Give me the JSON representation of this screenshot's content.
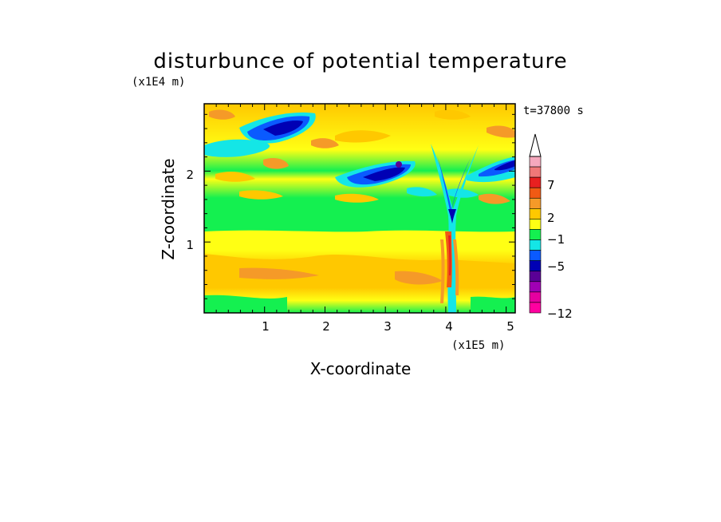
{
  "chart_data": {
    "type": "heatmap",
    "title": "disturbunce of potential temperature",
    "xlabel": "X-coordinate",
    "ylabel": "Z-coordinate",
    "x_unit": "(x1E5 m)",
    "y_unit": "(x1E4 m)",
    "time_label": "t=37800 s",
    "xlim": [
      0,
      5.15
    ],
    "ylim": [
      0,
      2.95
    ],
    "x_ticks": [
      "1",
      "2",
      "3",
      "4",
      "5"
    ],
    "y_ticks": [
      "1",
      "2"
    ],
    "colorbar": {
      "levels": [
        "#f5a8bd",
        "#f07878",
        "#e82020",
        "#f05a14",
        "#f59a28",
        "#ffc800",
        "#ffff14",
        "#14f050",
        "#14e6e6",
        "#0a5aff",
        "#0000b4",
        "#5a0096",
        "#a000b4",
        "#e600a0",
        "#ff00a0"
      ],
      "tick_labels": [
        "7",
        "2",
        "−1",
        "−5",
        "−12"
      ],
      "extend": "max"
    },
    "features": {
      "vertical_disturbance_x": 4.0,
      "negative_patches_upper": [
        {
          "x": 1.2,
          "z": 2.55,
          "level": -5
        },
        {
          "x": 3.15,
          "z": 2.1,
          "level": -5
        },
        {
          "x": 4.85,
          "z": 2.05,
          "level": -3
        }
      ],
      "positive_band_lower": {
        "z_range": [
          0.3,
          0.8
        ],
        "level": 2
      }
    }
  }
}
